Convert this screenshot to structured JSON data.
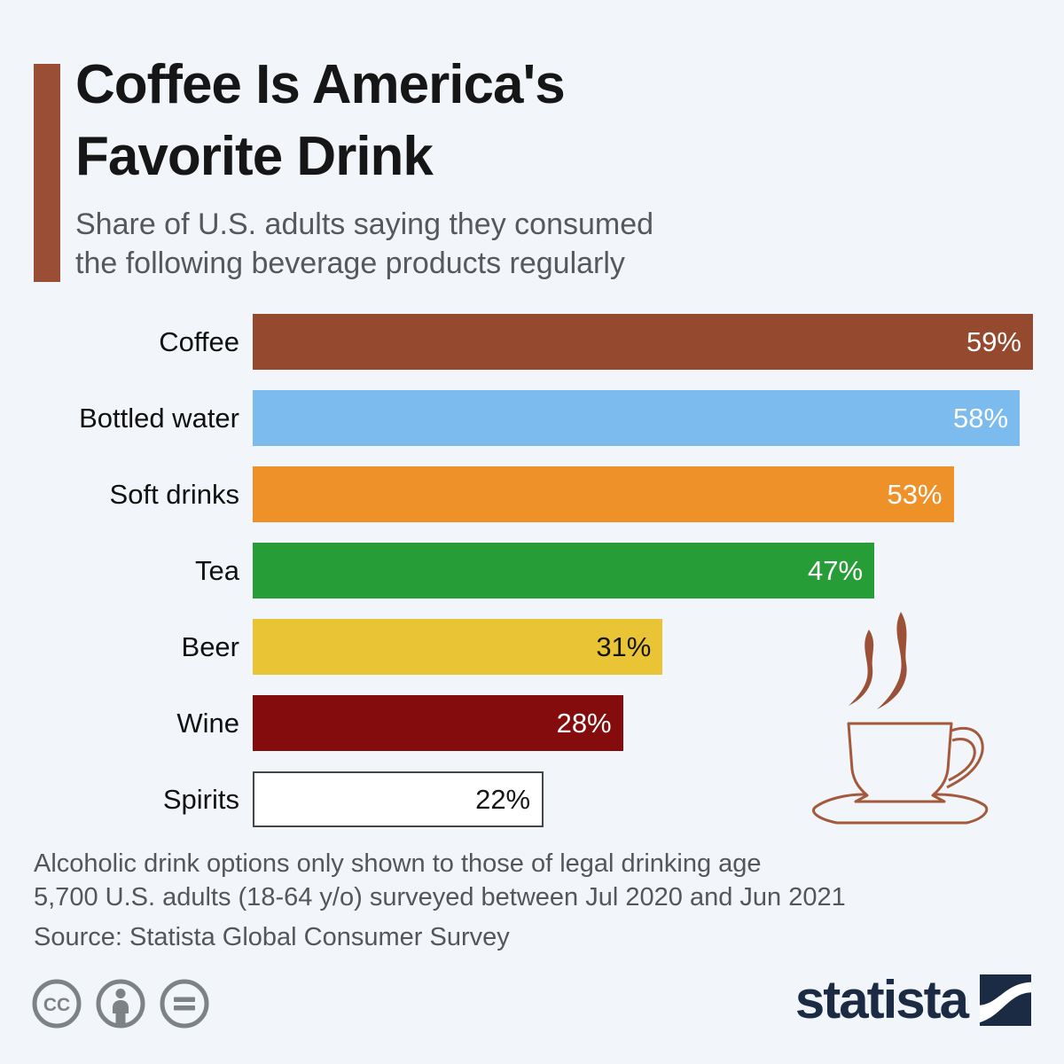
{
  "page": {
    "background_color": "#F2F5F9"
  },
  "header": {
    "accent_color": "#9A4E36",
    "title_line1": "Coffee Is America's",
    "title_line2": "Favorite Drink",
    "subtitle_line1": "Share of U.S. adults saying they consumed",
    "subtitle_line2": "the following beverage products regularly"
  },
  "chart_data": {
    "type": "bar",
    "orientation": "horizontal",
    "title": "Coffee Is America's Favorite Drink",
    "subtitle": "Share of U.S. adults saying they consumed the following beverage products regularly",
    "categories": [
      "Coffee",
      "Bottled water",
      "Soft drinks",
      "Tea",
      "Beer",
      "Wine",
      "Spirits"
    ],
    "values": [
      59,
      58,
      53,
      47,
      31,
      28,
      22
    ],
    "value_labels": [
      "59%",
      "58%",
      "53%",
      "47%",
      "31%",
      "28%",
      "22%"
    ],
    "bar_colors": [
      "#95492F",
      "#7BBBED",
      "#EF9129",
      "#279D37",
      "#E9C535",
      "#850C0D",
      "#FFFFFF"
    ],
    "value_text_colors": [
      "#FFFFFF",
      "#FFFFFF",
      "#FFFFFF",
      "#FFFFFF",
      "#161616",
      "#FFFFFF",
      "#161616"
    ],
    "outlined": [
      false,
      false,
      false,
      false,
      false,
      false,
      true
    ],
    "outline_color": "#454545",
    "xlim": [
      0,
      59
    ],
    "grid": false,
    "legend": false
  },
  "illustration": {
    "name": "steaming-coffee-cup",
    "outline_color": "#A4593C",
    "steam_color": "#9B5138"
  },
  "footnotes": [
    "Alcoholic drink options only shown to those of legal drinking age",
    "5,700 U.S. adults (18-64 y/o) surveyed between Jul 2020 and Jun 2021"
  ],
  "source": "Source: Statista Global Consumer Survey",
  "license": {
    "color": "#7D8285",
    "cc_label": "CC",
    "icons": [
      "cc-icon",
      "attribution-person-icon",
      "equals-icon"
    ]
  },
  "branding": {
    "logo_text": "statista",
    "logo_color": "#1B2B44"
  }
}
